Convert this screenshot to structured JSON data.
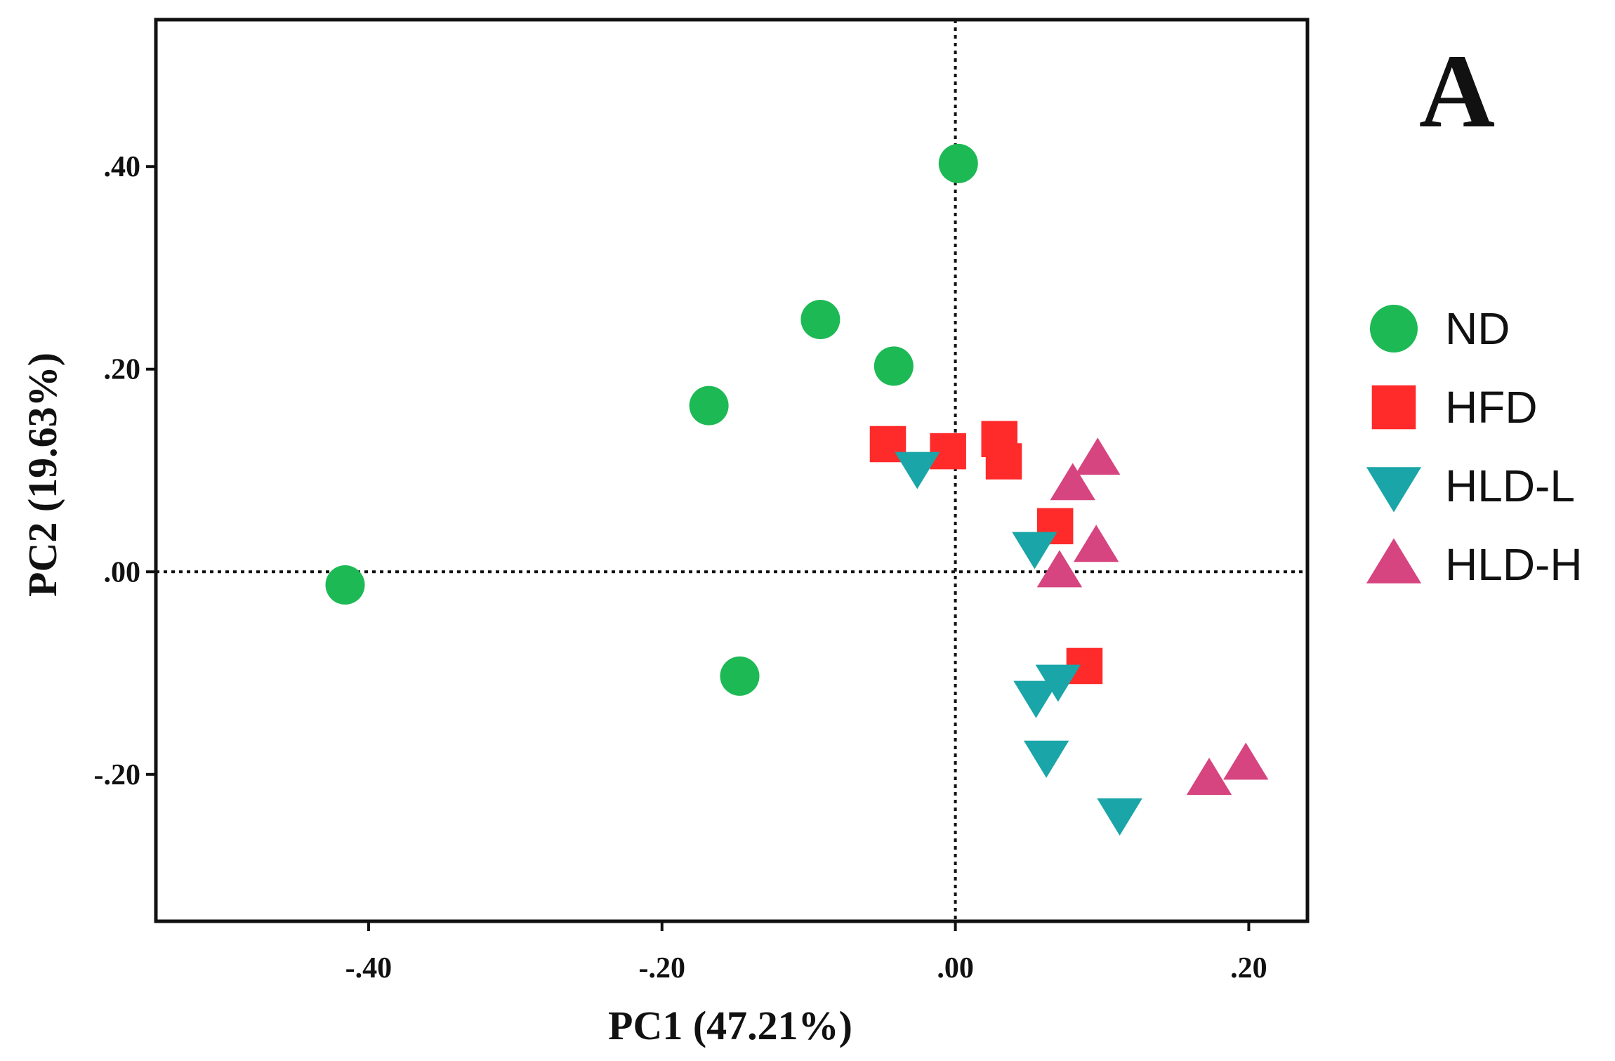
{
  "chart_data": {
    "type": "scatter",
    "panel_label": "A",
    "xlabel": "PC1 (47.21%)",
    "ylabel": "PC2 (19.63%)",
    "xlim": [
      -0.545,
      0.24
    ],
    "ylim": [
      -0.345,
      0.545
    ],
    "xticks": [
      {
        "value": -0.4,
        "label": "-.40"
      },
      {
        "value": -0.2,
        "label": "-.20"
      },
      {
        "value": 0.0,
        "label": ".00"
      },
      {
        "value": 0.2,
        "label": ".20"
      }
    ],
    "yticks": [
      {
        "value": 0.4,
        "label": ".40"
      },
      {
        "value": 0.2,
        "label": ".20"
      },
      {
        "value": 0.0,
        "label": ".00"
      },
      {
        "value": -0.2,
        "label": "-.20"
      }
    ],
    "reference_lines": {
      "x": 0.0,
      "y": 0.0,
      "style": "dotted"
    },
    "legend_position": "right",
    "series": [
      {
        "name": "ND",
        "marker": "circle",
        "color": "#1db954",
        "points": [
          {
            "x": 0.002,
            "y": 0.403
          },
          {
            "x": -0.092,
            "y": 0.249
          },
          {
            "x": -0.042,
            "y": 0.203
          },
          {
            "x": -0.168,
            "y": 0.164
          },
          {
            "x": -0.416,
            "y": -0.013
          },
          {
            "x": -0.147,
            "y": -0.103
          }
        ]
      },
      {
        "name": "HFD",
        "marker": "square",
        "color": "#ff2a2a",
        "points": [
          {
            "x": -0.046,
            "y": 0.126
          },
          {
            "x": -0.005,
            "y": 0.119
          },
          {
            "x": 0.03,
            "y": 0.131
          },
          {
            "x": 0.033,
            "y": 0.109
          },
          {
            "x": 0.068,
            "y": 0.045
          },
          {
            "x": 0.088,
            "y": -0.093
          }
        ]
      },
      {
        "name": "HLD-L",
        "marker": "triangle-down",
        "color": "#1aa5a8",
        "points": [
          {
            "x": -0.026,
            "y": 0.103
          },
          {
            "x": 0.054,
            "y": 0.024
          },
          {
            "x": 0.07,
            "y": -0.107
          },
          {
            "x": 0.055,
            "y": -0.123
          },
          {
            "x": 0.062,
            "y": -0.182
          },
          {
            "x": 0.112,
            "y": -0.239
          }
        ]
      },
      {
        "name": "HLD-H",
        "marker": "triangle-up",
        "legend_marker": "triangle-up",
        "color": "#d6457f",
        "points": [
          {
            "x": 0.08,
            "y": 0.086
          },
          {
            "x": 0.097,
            "y": 0.111
          },
          {
            "x": 0.096,
            "y": 0.025
          },
          {
            "x": 0.071,
            "y": 0.0
          },
          {
            "x": 0.173,
            "y": -0.205
          },
          {
            "x": 0.198,
            "y": -0.19
          }
        ]
      }
    ]
  }
}
